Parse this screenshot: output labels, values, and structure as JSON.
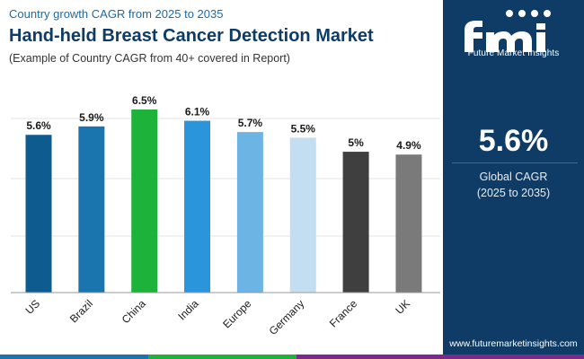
{
  "header": {
    "kicker": "Country growth CAGR from 2025 to 2035",
    "title": "Hand-held Breast Cancer Detection Market",
    "subtitle": "(Example of Country CAGR from 40+ covered in Report)"
  },
  "panel": {
    "logo_text": "Future Market Insights",
    "cagr_value": "5.6%",
    "cagr_label_line1": "Global CAGR",
    "cagr_label_line2": "(2025 to 2035)",
    "website": "www.futuremarketinsights.com"
  },
  "colors": {
    "panel_bg": "#0e3c66",
    "title": "#0e3c66",
    "bar_colors": [
      "#0e5b8f",
      "#1a74ad",
      "#1db33a",
      "#2a95da",
      "#6cb4e3",
      "#c3def1",
      "#3f3f3f",
      "#7a7a7a"
    ],
    "bottom_bar": [
      "#1a74ad",
      "#1db33a",
      "#7b2a8c"
    ]
  },
  "chart_data": {
    "type": "bar",
    "title": "Hand-held Breast Cancer Detection Market",
    "categories": [
      "US",
      "Brazil",
      "China",
      "India",
      "Europe",
      "Germany",
      "France",
      "UK"
    ],
    "values": [
      5.6,
      5.9,
      6.5,
      6.1,
      5.7,
      5.5,
      5.0,
      4.9
    ],
    "data_labels": [
      "5.6%",
      "5.9%",
      "6.5%",
      "6.1%",
      "5.7%",
      "5.5%",
      "5%",
      "4.9%"
    ],
    "xlabel": "",
    "ylabel": "",
    "ylim": [
      0,
      6.5
    ],
    "grid": true
  }
}
